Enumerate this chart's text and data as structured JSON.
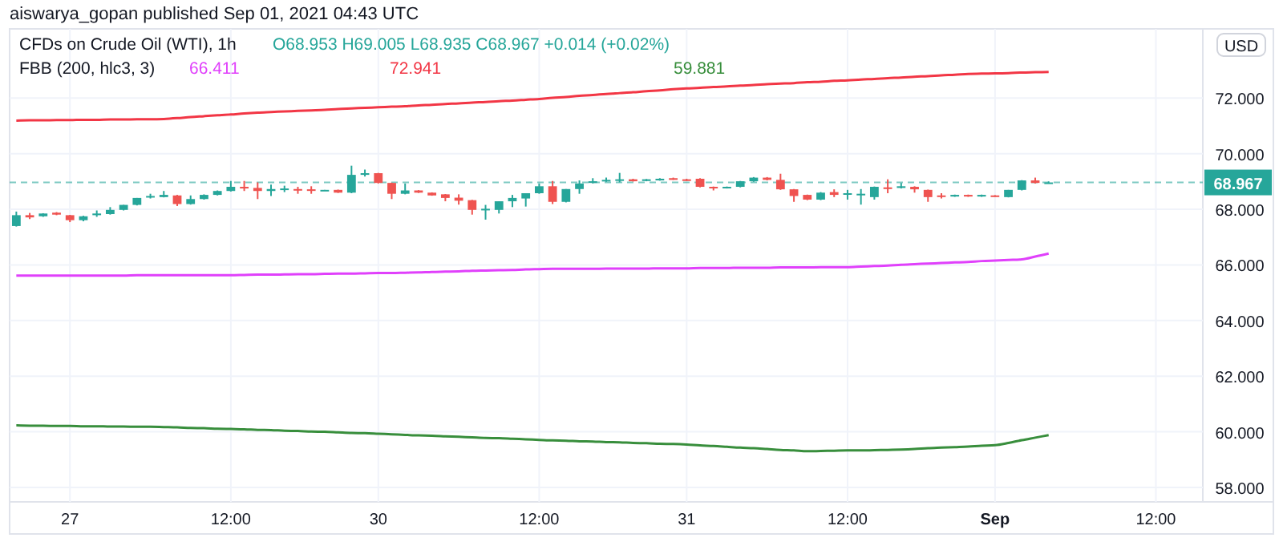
{
  "chart_data": {
    "type": "candlestick",
    "title": "CFDs on Crude Oil (WTI), 1h",
    "subtitle": "aiswarya_gopan published Sep 01, 2021 04:43 UTC",
    "legend_title": "FBB (200, hlc3, 3)",
    "ylabel": "USD",
    "annotations": [
      "O68.953 H69.005 L68.935 C68.967 +0.014 (+0.02%)",
      "66.411",
      "72.941",
      "59.881"
    ],
    "categories": [
      null,
      null,
      null,
      null,
      "27",
      null,
      null,
      null,
      null,
      null,
      null,
      null,
      null,
      null,
      null,
      null,
      "12:00",
      null,
      null,
      null,
      null,
      null,
      null,
      null,
      null,
      null,
      null,
      "30",
      null,
      null,
      null,
      null,
      null,
      null,
      null,
      null,
      null,
      null,
      null,
      "12:00",
      null,
      null,
      null,
      null,
      null,
      null,
      null,
      null,
      null,
      null,
      "31",
      null,
      null,
      null,
      null,
      null,
      null,
      null,
      null,
      null,
      null,
      null,
      "12:00",
      null,
      null,
      null,
      null,
      null,
      null,
      null,
      null,
      null,
      null,
      "Sep",
      null,
      null,
      null,
      null,
      null,
      null,
      null,
      null,
      null,
      null,
      null,
      "12:00",
      null,
      null,
      null
    ],
    "ohlc": [
      [
        67.4,
        67.92,
        67.38,
        67.79
      ],
      [
        67.79,
        67.87,
        67.65,
        67.71
      ],
      [
        67.75,
        67.86,
        67.73,
        67.85
      ],
      [
        67.88,
        67.9,
        67.79,
        67.81
      ],
      [
        67.79,
        67.8,
        67.54,
        67.61
      ],
      [
        67.61,
        67.77,
        67.57,
        67.75
      ],
      [
        67.79,
        67.96,
        67.73,
        67.85
      ],
      [
        67.83,
        68.08,
        67.81,
        67.98
      ],
      [
        67.98,
        68.16,
        67.96,
        68.16
      ],
      [
        68.16,
        68.41,
        68.14,
        68.41
      ],
      [
        68.43,
        68.56,
        68.39,
        68.48
      ],
      [
        68.44,
        68.66,
        68.43,
        68.52
      ],
      [
        68.5,
        68.52,
        68.12,
        68.19
      ],
      [
        68.19,
        68.5,
        68.17,
        68.37
      ],
      [
        68.37,
        68.54,
        68.35,
        68.52
      ],
      [
        68.52,
        68.68,
        68.5,
        68.66
      ],
      [
        68.66,
        69.02,
        68.64,
        68.81
      ],
      [
        68.81,
        69.02,
        68.66,
        68.75
      ],
      [
        68.77,
        68.97,
        68.37,
        68.66
      ],
      [
        68.66,
        68.89,
        68.48,
        68.73
      ],
      [
        68.72,
        68.85,
        68.62,
        68.75
      ],
      [
        68.73,
        68.81,
        68.56,
        68.68
      ],
      [
        68.72,
        68.83,
        68.56,
        68.68
      ],
      [
        68.68,
        68.7,
        68.67,
        68.7
      ],
      [
        68.7,
        68.71,
        68.59,
        68.6
      ],
      [
        68.6,
        69.57,
        68.58,
        69.24
      ],
      [
        69.24,
        69.43,
        69.18,
        69.3
      ],
      [
        69.3,
        69.31,
        68.93,
        68.95
      ],
      [
        68.95,
        68.96,
        68.37,
        68.56
      ],
      [
        68.56,
        68.93,
        68.54,
        68.68
      ],
      [
        68.68,
        68.69,
        68.59,
        68.6
      ],
      [
        68.6,
        68.61,
        68.49,
        68.5
      ],
      [
        68.54,
        68.55,
        68.29,
        68.41
      ],
      [
        68.42,
        68.54,
        68.17,
        68.31
      ],
      [
        68.33,
        68.34,
        67.81,
        67.98
      ],
      [
        67.98,
        68.16,
        67.63,
        68.02
      ],
      [
        67.98,
        68.29,
        67.85,
        68.29
      ],
      [
        68.29,
        68.52,
        68.08,
        68.41
      ],
      [
        68.39,
        68.58,
        68.1,
        68.58
      ],
      [
        68.58,
        68.93,
        68.56,
        68.83
      ],
      [
        68.83,
        69.02,
        68.19,
        68.27
      ],
      [
        68.27,
        68.73,
        68.25,
        68.73
      ],
      [
        68.73,
        69.04,
        68.56,
        68.93
      ],
      [
        68.95,
        69.12,
        68.93,
        69.01
      ],
      [
        69.01,
        69.14,
        68.99,
        69.06
      ],
      [
        69.04,
        69.31,
        68.97,
        69.08
      ],
      [
        69.08,
        69.1,
        69.0,
        69.01
      ],
      [
        69.02,
        69.09,
        69.01,
        69.08
      ],
      [
        69.04,
        69.12,
        69.03,
        69.1
      ],
      [
        69.12,
        69.14,
        69.06,
        69.06
      ],
      [
        69.08,
        69.1,
        69.02,
        69.02
      ],
      [
        69.1,
        69.12,
        68.79,
        68.81
      ],
      [
        68.81,
        68.82,
        68.68,
        68.77
      ],
      [
        68.77,
        68.82,
        68.75,
        68.81
      ],
      [
        68.81,
        69.02,
        68.79,
        69.01
      ],
      [
        69.01,
        69.16,
        68.99,
        69.14
      ],
      [
        69.14,
        69.16,
        69.04,
        69.06
      ],
      [
        69.06,
        69.28,
        68.7,
        68.72
      ],
      [
        68.72,
        68.73,
        68.27,
        68.48
      ],
      [
        68.52,
        68.53,
        68.33,
        68.35
      ],
      [
        68.35,
        68.62,
        68.33,
        68.6
      ],
      [
        68.62,
        68.72,
        68.44,
        68.52
      ],
      [
        68.54,
        68.7,
        68.35,
        68.58
      ],
      [
        68.52,
        68.73,
        68.17,
        68.56
      ],
      [
        68.44,
        68.82,
        68.35,
        68.81
      ],
      [
        68.79,
        69.08,
        68.58,
        68.73
      ],
      [
        68.77,
        68.95,
        68.75,
        68.83
      ],
      [
        68.81,
        68.83,
        68.6,
        68.72
      ],
      [
        68.7,
        68.71,
        68.27,
        68.44
      ],
      [
        68.5,
        68.58,
        68.39,
        68.46
      ],
      [
        68.46,
        68.53,
        68.45,
        68.52
      ],
      [
        68.52,
        68.53,
        68.45,
        68.46
      ],
      [
        68.46,
        68.53,
        68.45,
        68.52
      ],
      [
        68.5,
        68.51,
        68.45,
        68.46
      ],
      [
        68.44,
        68.7,
        68.43,
        68.7
      ],
      [
        68.7,
        69.05,
        68.68,
        69.04
      ],
      [
        69.04,
        69.14,
        68.93,
        68.95
      ],
      [
        68.953,
        69.005,
        68.935,
        68.967
      ],
      null,
      null,
      null,
      null,
      null,
      null,
      null,
      null,
      null,
      null,
      null
    ],
    "colors": [
      "#26a69a",
      "#ef5350",
      "#26a69a",
      "#ef5350",
      "#ef5350",
      "#26a69a",
      "#26a69a",
      "#26a69a",
      "#26a69a",
      "#26a69a",
      "#26a69a",
      "#26a69a",
      "#ef5350",
      "#26a69a",
      "#26a69a",
      "#26a69a",
      "#26a69a",
      "#ef5350",
      "#ef5350",
      "#26a69a",
      "#26a69a",
      "#ef5350",
      "#ef5350",
      "#26a69a",
      "#ef5350",
      "#26a69a",
      "#26a69a",
      "#ef5350",
      "#ef5350",
      "#26a69a",
      "#ef5350",
      "#ef5350",
      "#ef5350",
      "#ef5350",
      "#ef5350",
      "#26a69a",
      "#26a69a",
      "#26a69a",
      "#26a69a",
      "#26a69a",
      "#ef5350",
      "#26a69a",
      "#26a69a",
      "#26a69a",
      "#26a69a",
      "#26a69a",
      "#ef5350",
      "#26a69a",
      "#26a69a",
      "#ef5350",
      "#ef5350",
      "#ef5350",
      "#ef5350",
      "#26a69a",
      "#26a69a",
      "#26a69a",
      "#ef5350",
      "#ef5350",
      "#ef5350",
      "#ef5350",
      "#26a69a",
      "#ef5350",
      "#26a69a",
      "#26a69a",
      "#26a69a",
      "#ef5350",
      "#26a69a",
      "#ef5350",
      "#ef5350",
      "#ef5350",
      "#26a69a",
      "#ef5350",
      "#26a69a",
      "#ef5350",
      "#26a69a",
      "#26a69a",
      "#ef5350",
      "#26a69a",
      null,
      null,
      null,
      null,
      null,
      null,
      null,
      null,
      null,
      null,
      null
    ],
    "series": [
      {
        "type": "line",
        "color": "#e040fb",
        "values": [
          65.62,
          65.62,
          65.62,
          65.62,
          65.62,
          65.62,
          65.62,
          65.62,
          65.62,
          65.63,
          65.63,
          65.63,
          65.63,
          65.63,
          65.63,
          65.63,
          65.63,
          65.64,
          65.65,
          65.65,
          65.66,
          65.67,
          65.67,
          65.68,
          65.69,
          65.69,
          65.7,
          65.71,
          65.71,
          65.72,
          65.73,
          65.75,
          65.76,
          65.77,
          65.79,
          65.8,
          65.81,
          65.82,
          65.84,
          65.85,
          65.86,
          65.86,
          65.86,
          65.86,
          65.87,
          65.87,
          65.87,
          65.87,
          65.88,
          65.88,
          65.88,
          65.89,
          65.89,
          65.89,
          65.9,
          65.9,
          65.9,
          65.91,
          65.91,
          65.91,
          65.92,
          65.92,
          65.92,
          65.94,
          65.96,
          65.98,
          66.01,
          66.03,
          66.05,
          66.07,
          66.09,
          66.11,
          66.14,
          66.16,
          66.18,
          66.2,
          66.3,
          66.41,
          null,
          null,
          null,
          null,
          null,
          null,
          null,
          null,
          null,
          null,
          null
        ]
      },
      {
        "type": "line",
        "color": "#f23645",
        "values": [
          71.19,
          71.2,
          71.2,
          71.21,
          71.21,
          71.22,
          71.22,
          71.23,
          71.23,
          71.24,
          71.24,
          71.25,
          71.28,
          71.32,
          71.35,
          71.38,
          71.41,
          71.45,
          71.48,
          71.5,
          71.52,
          71.54,
          71.56,
          71.58,
          71.61,
          71.63,
          71.65,
          71.67,
          71.69,
          71.71,
          71.74,
          71.76,
          71.79,
          71.81,
          71.84,
          71.86,
          71.89,
          71.91,
          71.94,
          71.97,
          72.01,
          72.04,
          72.08,
          72.11,
          72.15,
          72.18,
          72.21,
          72.25,
          72.28,
          72.32,
          72.35,
          72.37,
          72.4,
          72.42,
          72.45,
          72.47,
          72.5,
          72.52,
          72.54,
          72.57,
          72.59,
          72.62,
          72.64,
          72.67,
          72.69,
          72.72,
          72.74,
          72.77,
          72.79,
          72.82,
          72.84,
          72.87,
          72.88,
          72.89,
          72.9,
          72.92,
          72.93,
          72.94,
          null,
          null,
          null,
          null,
          null,
          null,
          null,
          null,
          null,
          null,
          null
        ]
      },
      {
        "type": "line",
        "color": "#388e3c",
        "values": [
          60.23,
          60.22,
          60.22,
          60.21,
          60.21,
          60.2,
          60.2,
          60.19,
          60.19,
          60.18,
          60.18,
          60.17,
          60.16,
          60.14,
          60.13,
          60.11,
          60.1,
          60.09,
          60.07,
          60.06,
          60.04,
          60.03,
          60.01,
          60.0,
          59.98,
          59.96,
          59.95,
          59.93,
          59.91,
          59.89,
          59.87,
          59.86,
          59.84,
          59.82,
          59.8,
          59.78,
          59.77,
          59.75,
          59.73,
          59.71,
          59.69,
          59.68,
          59.66,
          59.65,
          59.63,
          59.62,
          59.6,
          59.59,
          59.57,
          59.56,
          59.54,
          59.51,
          59.49,
          59.46,
          59.43,
          59.41,
          59.38,
          59.35,
          59.33,
          59.3,
          59.31,
          59.32,
          59.33,
          59.33,
          59.34,
          59.35,
          59.36,
          59.38,
          59.41,
          59.43,
          59.45,
          59.47,
          59.5,
          59.52,
          59.6,
          59.7,
          59.79,
          59.88,
          null,
          null,
          null,
          null,
          null,
          null,
          null,
          null,
          null,
          null,
          null
        ]
      }
    ],
    "ylim": [
      57.48,
      74.49
    ],
    "yticks": [
      {
        "value": 58,
        "label": "58.000"
      },
      {
        "value": 60,
        "label": "60.000"
      },
      {
        "value": 62,
        "label": "62.000"
      },
      {
        "value": 64,
        "label": "64.000"
      },
      {
        "value": 66,
        "label": "66.000"
      },
      {
        "value": 68,
        "label": "68.000"
      },
      {
        "value": 70,
        "label": "70.000"
      },
      {
        "value": 72,
        "label": "72.000"
      }
    ],
    "ref_lines": [
      {
        "axis": "y",
        "value": 68.967,
        "label": "68.967",
        "color": "#26a69a",
        "line_style": "dashed"
      }
    ],
    "grid": true
  }
}
